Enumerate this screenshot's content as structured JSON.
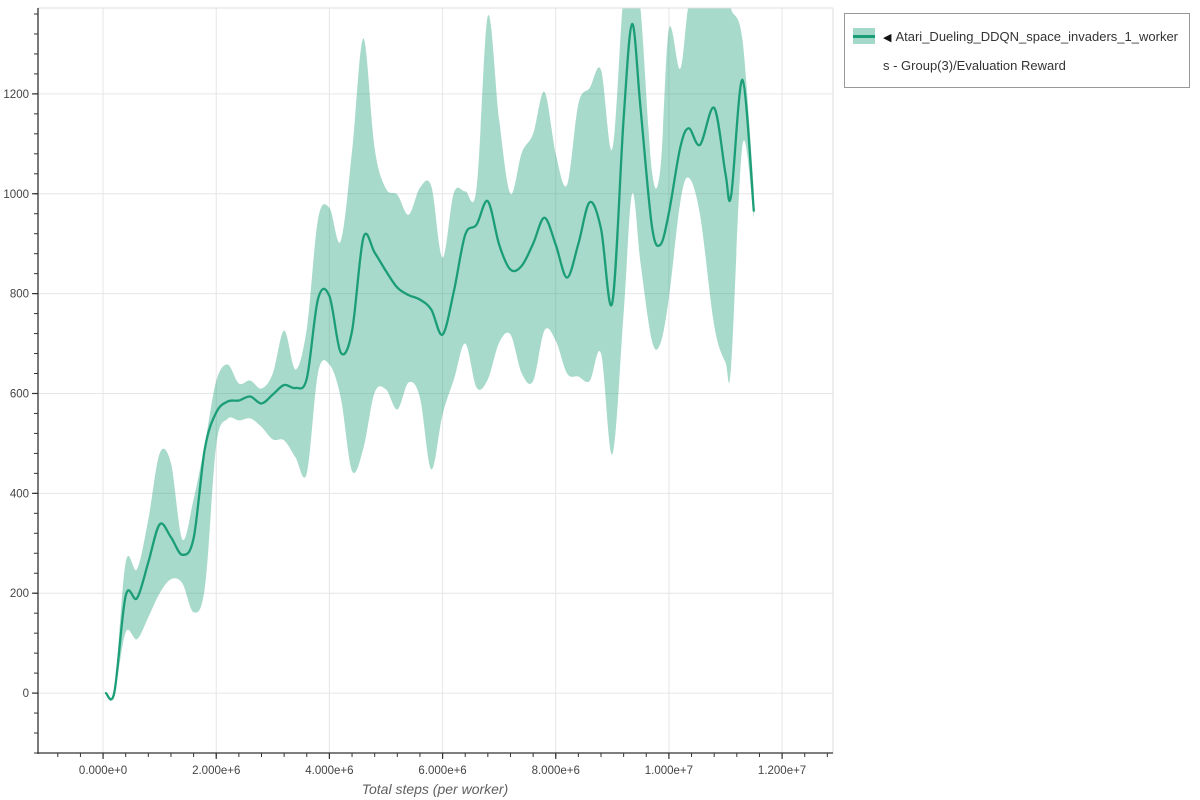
{
  "legend": {
    "icon": "◀",
    "label": "Atari_Dueling_DDQN_space_invaders_1_workers - Group(3)/Evaluation Reward"
  },
  "colors": {
    "line": "#1b9e77",
    "band": "rgba(27,158,119,0.38)",
    "grid": "#e6e6e6",
    "axis": "#333333",
    "spine_light": "#dddddd",
    "tick_label": "#444444",
    "axis_title": "#5f5f5f",
    "legend_border": "#999999",
    "legend_text": "#333333",
    "background": "#ffffff",
    "swatch_fill": "#a4d8c8"
  },
  "chart_data": {
    "type": "line",
    "title": "",
    "xlabel": "Total steps (per worker)",
    "ylabel": "",
    "xlim": [
      -1150000,
      12900000
    ],
    "ylim": [
      -120,
      1372
    ],
    "grid": "major",
    "legend_position": "top-right",
    "x_minor_step": 400000,
    "y_minor_step": 40,
    "x_ticks": [
      {
        "value": 0,
        "label": "0.000e+0"
      },
      {
        "value": 2000000,
        "label": "2.000e+6"
      },
      {
        "value": 4000000,
        "label": "4.000e+6"
      },
      {
        "value": 6000000,
        "label": "6.000e+6"
      },
      {
        "value": 8000000,
        "label": "8.000e+6"
      },
      {
        "value": 10000000,
        "label": "1.000e+7"
      },
      {
        "value": 12000000,
        "label": "1.200e+7"
      }
    ],
    "y_ticks": [
      {
        "value": 0,
        "label": "0"
      },
      {
        "value": 200,
        "label": "200"
      },
      {
        "value": 400,
        "label": "400"
      },
      {
        "value": 600,
        "label": "600"
      },
      {
        "value": 800,
        "label": "800"
      },
      {
        "value": 1000,
        "label": "1000"
      },
      {
        "value": 1200,
        "label": "1200"
      }
    ],
    "series": [
      {
        "name": "Atari_Dueling_DDQN_space_invaders_1_workers - Group(3)/Evaluation Reward",
        "color": "#1b9e77",
        "band_color": "rgba(27,158,119,0.38)",
        "x": [
          50000,
          200000,
          400000,
          600000,
          800000,
          1000000,
          1200000,
          1400000,
          1600000,
          1800000,
          2000000,
          2200000,
          2400000,
          2600000,
          2800000,
          3000000,
          3200000,
          3400000,
          3600000,
          3800000,
          4000000,
          4200000,
          4400000,
          4600000,
          4800000,
          5000000,
          5200000,
          5400000,
          5600000,
          5800000,
          6000000,
          6200000,
          6400000,
          6600000,
          6800000,
          7000000,
          7200000,
          7400000,
          7600000,
          7800000,
          8000000,
          8200000,
          8400000,
          8600000,
          8800000,
          9000000,
          9200000,
          9350000,
          9500000,
          9700000,
          9850000,
          10000000,
          10200000,
          10350000,
          10550000,
          10800000,
          11000000,
          11100000,
          11300000,
          11500000
        ],
        "mean": [
          0,
          2,
          195,
          190,
          262,
          338,
          312,
          277,
          310,
          490,
          562,
          584,
          586,
          594,
          580,
          598,
          617,
          611,
          630,
          790,
          795,
          682,
          725,
          912,
          882,
          845,
          812,
          797,
          788,
          768,
          718,
          805,
          918,
          938,
          985,
          898,
          848,
          856,
          900,
          952,
          898,
          832,
          900,
          983,
          930,
          782,
          1150,
          1340,
          1170,
          935,
          898,
          962,
          1092,
          1131,
          1098,
          1172,
          1040,
          996,
          1228,
          966
        ],
        "band_low": [
          0,
          0,
          122,
          108,
          152,
          200,
          228,
          220,
          162,
          212,
          496,
          549,
          546,
          550,
          533,
          508,
          506,
          472,
          440,
          642,
          658,
          592,
          445,
          490,
          602,
          608,
          568,
          622,
          592,
          448,
          558,
          628,
          700,
          612,
          628,
          702,
          718,
          640,
          625,
          726,
          706,
          640,
          634,
          625,
          680,
          478,
          760,
          1000,
          860,
          706,
          700,
          792,
          982,
          1032,
          958,
          736,
          662,
          654,
          1098,
          952
        ],
        "band_high": [
          0,
          8,
          262,
          248,
          348,
          480,
          460,
          308,
          388,
          500,
          625,
          658,
          620,
          626,
          610,
          640,
          726,
          648,
          730,
          950,
          972,
          905,
          1085,
          1311,
          1090,
          1010,
          998,
          958,
          1012,
          1015,
          872,
          1002,
          1005,
          1010,
          1356,
          1148,
          1000,
          1082,
          1120,
          1204,
          1080,
          1018,
          1180,
          1212,
          1248,
          1090,
          1400,
          1450,
          1368,
          1046,
          1050,
          1330,
          1250,
          1380,
          1450,
          1450,
          1430,
          1370,
          1308,
          1010
        ]
      }
    ]
  }
}
